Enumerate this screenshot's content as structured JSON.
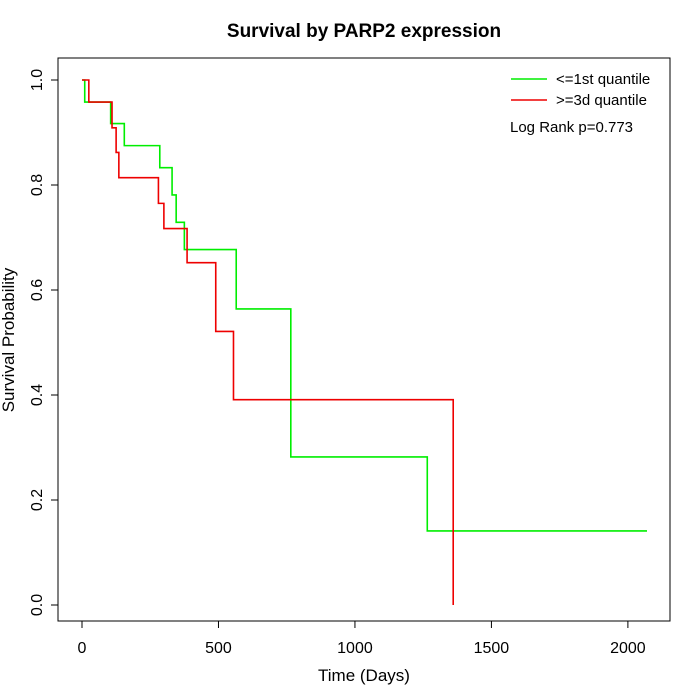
{
  "chart_data": {
    "type": "line",
    "step": true,
    "title": "Survival by PARP2 expression",
    "xlabel": "Time (Days)",
    "ylabel": "Survival Probability",
    "xlim": [
      0,
      2070
    ],
    "ylim": [
      0,
      1.0
    ],
    "xticks": [
      0,
      500,
      1000,
      1500,
      2000
    ],
    "yticks": [
      0.0,
      0.2,
      0.4,
      0.6,
      0.8,
      1.0
    ],
    "xtick_labels": [
      "0",
      "500",
      "1000",
      "1500",
      "2000"
    ],
    "ytick_labels": [
      "0.0",
      "0.2",
      "0.4",
      "0.6",
      "0.8",
      "1.0"
    ],
    "grid": false,
    "legend_position": "top-right",
    "annotation": "Log Rank p=0.773",
    "series": [
      {
        "name": "<=1st quantile",
        "color": "#00ee00",
        "x": [
          0,
          10,
          105,
          155,
          285,
          330,
          345,
          375,
          565,
          765,
          1265,
          2070
        ],
        "y": [
          1.0,
          0.958,
          0.917,
          0.875,
          0.833,
          0.781,
          0.729,
          0.677,
          0.564,
          0.282,
          0.141,
          0.141
        ]
      },
      {
        "name": ">=3d quantile",
        "color": "#ee0000",
        "x": [
          0,
          25,
          110,
          125,
          135,
          280,
          300,
          385,
          490,
          555,
          1360,
          1360
        ],
        "y": [
          1.0,
          0.958,
          0.909,
          0.862,
          0.814,
          0.765,
          0.717,
          0.652,
          0.521,
          0.391,
          0.391,
          0.0
        ]
      }
    ]
  }
}
